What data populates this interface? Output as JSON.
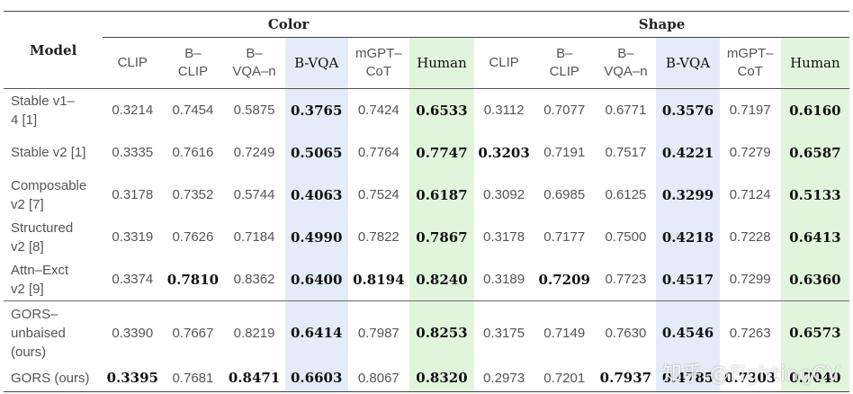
{
  "table": {
    "model_header": "Model",
    "groups": [
      {
        "label": "Color"
      },
      {
        "label": "Shape"
      }
    ],
    "columns": [
      [
        "CLIP",
        "B–\nCLIP",
        "B–\nVQA–n",
        "B-VQA",
        "mGPT–\nCoT",
        "Human"
      ],
      [
        "CLIP",
        "B–\nCLIP",
        "B–\nVQA–n",
        "B-VQA",
        "mGPT–\nCoT",
        "Human"
      ]
    ],
    "rows": [
      {
        "model": "Stable v1–\n4 [1]",
        "values": [
          "0.3214",
          "0.7454",
          "0.5875",
          "0.3765",
          "0.7424",
          "0.6533",
          "0.3112",
          "0.7077",
          "0.6771",
          "0.3576",
          "0.7197",
          "0.6160"
        ],
        "bold": [
          3,
          5,
          9,
          11
        ]
      },
      {
        "model": "Stable v2 [1]",
        "values": [
          "0.3335",
          "0.7616",
          "0.7249",
          "0.5065",
          "0.7764",
          "0.7747",
          "0.3203",
          "0.7191",
          "0.7517",
          "0.4221",
          "0.7279",
          "0.6587"
        ],
        "bold": [
          3,
          5,
          6,
          9,
          11
        ]
      },
      {
        "model": "Composable\nv2 [7]",
        "values": [
          "0.3178",
          "0.7352",
          "0.5744",
          "0.4063",
          "0.7524",
          "0.6187",
          "0.3092",
          "0.6985",
          "0.6125",
          "0.3299",
          "0.7124",
          "0.5133"
        ],
        "bold": [
          3,
          5,
          9,
          11
        ]
      },
      {
        "model": "Structured\nv2 [8]",
        "values": [
          "0.3319",
          "0.7626",
          "0.7184",
          "0.4990",
          "0.7822",
          "0.7867",
          "0.3178",
          "0.7177",
          "0.7500",
          "0.4218",
          "0.7228",
          "0.6413"
        ],
        "bold": [
          3,
          5,
          9,
          11
        ]
      },
      {
        "model": "Attn–Exct\nv2 [9]",
        "values": [
          "0.3374",
          "0.7810",
          "0.8362",
          "0.6400",
          "0.8194",
          "0.8240",
          "0.3189",
          "0.7209",
          "0.7723",
          "0.4517",
          "0.7299",
          "0.6360"
        ],
        "bold": [
          1,
          3,
          4,
          5,
          7,
          9,
          11
        ]
      },
      {
        "model": "GORS–\nunbaised\n(ours)",
        "values": [
          "0.3390",
          "0.7667",
          "0.8219",
          "0.6414",
          "0.7987",
          "0.8253",
          "0.3175",
          "0.7149",
          "0.7630",
          "0.4546",
          "0.7263",
          "0.6573"
        ],
        "bold": [
          3,
          5,
          9,
          11
        ]
      },
      {
        "model": "GORS (ours)",
        "values": [
          "0.3395",
          "0.7681",
          "0.8471",
          "0.6603",
          "0.8067",
          "0.8320",
          "0.2973",
          "0.7201",
          "0.7937",
          "0.4785",
          "0.7303",
          "0.7040"
        ],
        "bold": [
          0,
          2,
          3,
          5,
          8,
          9,
          10,
          11
        ]
      }
    ]
  },
  "watermark": "知乎 @FightingCV",
  "colors": {
    "bvqa_highlight": "#e3ecf8",
    "human_highlight": "#e1f5dc"
  }
}
